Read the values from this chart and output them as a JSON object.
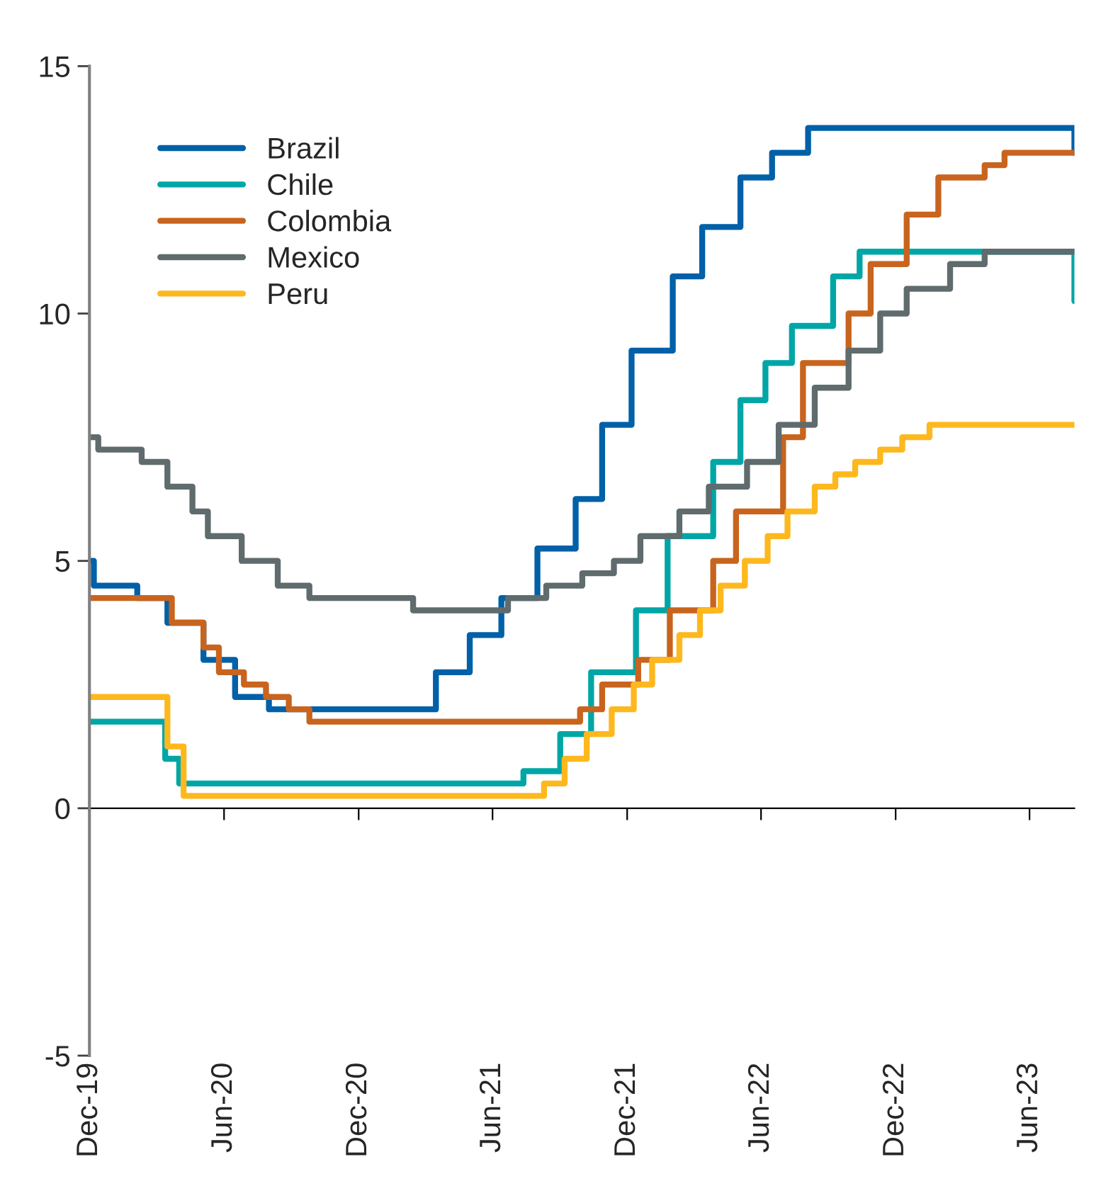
{
  "chart_data": {
    "type": "step",
    "xlim": [
      "2019-12-01",
      "2023-08-01"
    ],
    "ylim": [
      -5,
      15
    ],
    "yticks": [
      -5,
      0,
      5,
      10,
      15
    ],
    "xticks": [
      {
        "value": "2019-12-01",
        "label": "Dec-19"
      },
      {
        "value": "2020-06-01",
        "label": "Jun-20"
      },
      {
        "value": "2020-12-01",
        "label": "Dec-20"
      },
      {
        "value": "2021-06-01",
        "label": "Jun-21"
      },
      {
        "value": "2021-12-01",
        "label": "Dec-21"
      },
      {
        "value": "2022-06-01",
        "label": "Jun-22"
      },
      {
        "value": "2022-12-01",
        "label": "Dec-22"
      },
      {
        "value": "2023-06-01",
        "label": "Jun-23"
      }
    ],
    "legend": "top left",
    "line_style": "solid",
    "series": [
      {
        "name": "Brazil",
        "color": "#0060a8",
        "x": [
          "2019-12-01",
          "2019-12-07",
          "2020-02-04",
          "2020-03-16",
          "2020-05-04",
          "2020-06-16",
          "2020-08-01",
          "2021-03-16",
          "2021-05-01",
          "2021-06-13",
          "2021-08-01",
          "2021-09-22",
          "2021-10-28",
          "2021-12-07",
          "2022-02-01",
          "2022-03-13",
          "2022-05-04",
          "2022-06-16",
          "2022-08-04",
          "2023-08-01"
        ],
        "values": [
          5.0,
          4.5,
          4.25,
          3.75,
          3.0,
          2.25,
          2.0,
          2.75,
          3.5,
          4.25,
          5.25,
          6.25,
          7.75,
          9.25,
          10.75,
          11.75,
          12.75,
          13.25,
          13.75,
          13.25
        ]
      },
      {
        "name": "Chile",
        "color": "#00a6a6",
        "x": [
          "2019-12-01",
          "2020-03-13",
          "2020-04-01",
          "2021-07-13",
          "2021-09-01",
          "2021-10-13",
          "2021-12-13",
          "2022-01-25",
          "2022-03-28",
          "2022-05-04",
          "2022-06-07",
          "2022-07-13",
          "2022-09-07",
          "2022-10-13",
          "2023-08-01"
        ],
        "values": [
          1.75,
          1.0,
          0.5,
          0.75,
          1.5,
          2.75,
          4.0,
          5.5,
          7.0,
          8.25,
          9.0,
          9.75,
          10.75,
          11.25,
          10.25
        ]
      },
      {
        "name": "Colombia",
        "color": "#c8641e",
        "x": [
          "2019-12-01",
          "2020-03-22",
          "2020-05-04",
          "2020-05-25",
          "2020-06-28",
          "2020-07-28",
          "2020-08-28",
          "2020-09-25",
          "2021-09-28",
          "2021-10-28",
          "2021-12-16",
          "2022-01-28",
          "2022-03-28",
          "2022-04-28",
          "2022-07-01",
          "2022-07-28",
          "2022-09-28",
          "2022-10-28",
          "2022-12-16",
          "2023-01-28",
          "2023-04-01",
          "2023-04-28",
          "2023-08-01"
        ],
        "values": [
          4.25,
          3.75,
          3.25,
          2.75,
          2.5,
          2.25,
          2.0,
          1.75,
          2.0,
          2.5,
          3.0,
          4.0,
          5.0,
          6.0,
          7.5,
          9.0,
          10.0,
          11.0,
          12.0,
          12.75,
          13.0,
          13.25,
          13.25
        ]
      },
      {
        "name": "Mexico",
        "color": "#5f6b6d",
        "x": [
          "2019-12-01",
          "2019-12-13",
          "2020-02-10",
          "2020-03-16",
          "2020-04-19",
          "2020-05-10",
          "2020-06-25",
          "2020-08-13",
          "2020-09-25",
          "2021-02-13",
          "2021-06-22",
          "2021-08-13",
          "2021-10-01",
          "2021-11-13",
          "2021-12-19",
          "2022-02-10",
          "2022-03-22",
          "2022-05-13",
          "2022-06-25",
          "2022-08-13",
          "2022-09-28",
          "2022-11-10",
          "2022-12-16",
          "2023-02-13",
          "2023-04-01",
          "2023-08-01"
        ],
        "values": [
          7.5,
          7.25,
          7.0,
          6.5,
          6.0,
          5.5,
          5.0,
          4.5,
          4.25,
          4.0,
          4.25,
          4.5,
          4.75,
          5.0,
          5.5,
          6.0,
          6.5,
          7.0,
          7.75,
          8.5,
          9.25,
          10.0,
          10.5,
          11.0,
          11.25,
          11.25
        ]
      },
      {
        "name": "Peru",
        "color": "#fdb81e",
        "x": [
          "2019-12-01",
          "2020-03-16",
          "2020-04-07",
          "2021-08-10",
          "2021-09-07",
          "2021-10-07",
          "2021-11-10",
          "2021-12-10",
          "2022-01-04",
          "2022-02-10",
          "2022-03-10",
          "2022-04-07",
          "2022-05-10",
          "2022-06-10",
          "2022-07-07",
          "2022-08-13",
          "2022-09-10",
          "2022-10-07",
          "2022-11-10",
          "2022-12-10",
          "2023-01-16",
          "2023-08-01"
        ],
        "values": [
          2.25,
          1.25,
          0.25,
          0.5,
          1.0,
          1.5,
          2.0,
          2.5,
          3.0,
          3.5,
          4.0,
          4.5,
          5.0,
          5.5,
          6.0,
          6.5,
          6.75,
          7.0,
          7.25,
          7.5,
          7.75,
          7.75
        ]
      }
    ]
  }
}
